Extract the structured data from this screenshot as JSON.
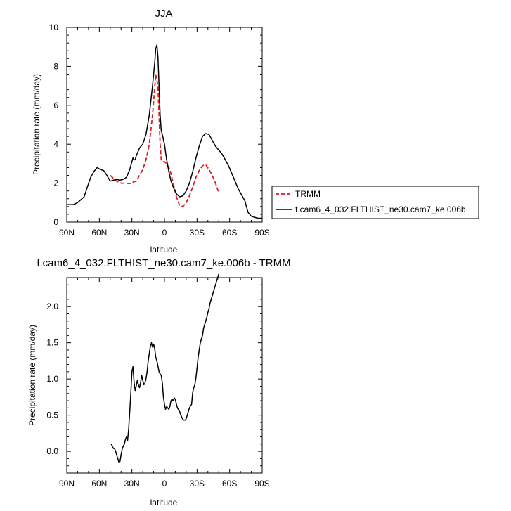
{
  "chart_data": [
    {
      "type": "line",
      "title": "JJA",
      "xlabel": "latitude",
      "ylabel": "Precipitation rate (mm/day)",
      "xlim": [
        90,
        -90
      ],
      "ylim": [
        0,
        10
      ],
      "xticks": [
        90,
        60,
        30,
        0,
        -30,
        -60,
        -90
      ],
      "xtick_labels": [
        "90N",
        "60N",
        "30N",
        "0",
        "30S",
        "60S",
        "90S"
      ],
      "yticks": [
        0,
        2,
        4,
        6,
        8,
        10
      ],
      "ytick_labels": [
        "0",
        "2",
        "4",
        "6",
        "8",
        "10"
      ],
      "legend_position": "right",
      "series": [
        {
          "name": "TRMM",
          "color": "#e41a1c",
          "dash": "dashed",
          "x": [
            50,
            47,
            44,
            40,
            36,
            32,
            29,
            26,
            23,
            20,
            17,
            14,
            11,
            8,
            6,
            5,
            4,
            3,
            2,
            0,
            -2,
            -5,
            -8,
            -11,
            -14,
            -17,
            -20,
            -23,
            -26,
            -29,
            -32,
            -35,
            -38,
            -41,
            -44,
            -47,
            -50
          ],
          "y": [
            2.4,
            2.25,
            2.1,
            2.0,
            2.0,
            1.98,
            2.05,
            2.1,
            2.4,
            2.7,
            3.2,
            4.0,
            5.5,
            7.6,
            7.0,
            5.5,
            4.0,
            3.2,
            3.1,
            3.1,
            3.0,
            2.7,
            2.0,
            1.3,
            0.85,
            0.8,
            1.0,
            1.35,
            1.8,
            2.3,
            2.65,
            2.9,
            2.95,
            2.7,
            2.4,
            2.0,
            1.5
          ]
        },
        {
          "name": "f.cam6_4_032.FLTHIST_ne30.cam7_ke.006b",
          "color": "#000000",
          "dash": "solid",
          "x": [
            90,
            84,
            80,
            77,
            74,
            71,
            68,
            65,
            62,
            59,
            56,
            53,
            50,
            47,
            44,
            41,
            38,
            35,
            32,
            29,
            28,
            27,
            26,
            23,
            20,
            17,
            14,
            11,
            9,
            8,
            7,
            6,
            5,
            4,
            3,
            2,
            0,
            -2,
            -4,
            -6,
            -8,
            -11,
            -14,
            -17,
            -20,
            -23,
            -26,
            -29,
            -32,
            -35,
            -38,
            -41,
            -44,
            -47,
            -50,
            -53,
            -56,
            -59,
            -62,
            -65,
            -68,
            -71,
            -74,
            -77,
            -80,
            -83,
            -86,
            -90
          ],
          "y": [
            0.9,
            0.9,
            1.0,
            1.15,
            1.3,
            1.8,
            2.3,
            2.6,
            2.8,
            2.7,
            2.65,
            2.4,
            2.1,
            2.15,
            2.2,
            2.15,
            2.2,
            2.3,
            2.7,
            3.3,
            3.2,
            3.2,
            3.4,
            3.8,
            4.0,
            4.5,
            5.5,
            7.0,
            8.2,
            8.9,
            9.1,
            8.5,
            7.0,
            5.5,
            4.7,
            4.5,
            4.0,
            3.2,
            2.6,
            2.1,
            1.8,
            1.45,
            1.3,
            1.35,
            1.6,
            2.0,
            2.6,
            3.3,
            3.9,
            4.4,
            4.55,
            4.5,
            4.2,
            3.9,
            3.7,
            3.5,
            3.2,
            2.9,
            2.5,
            2.1,
            1.7,
            1.4,
            1.1,
            0.5,
            0.3,
            0.25,
            0.2,
            0.2
          ]
        }
      ]
    },
    {
      "type": "line",
      "title": "f.cam6_4_032.FLTHIST_ne30.cam7_ke.006b - TRMM",
      "xlabel": "latitude",
      "ylabel": "Precipitation rate (mm/day)",
      "xlim": [
        90,
        -90
      ],
      "ylim": [
        -0.3,
        2.4
      ],
      "xticks": [
        90,
        60,
        30,
        0,
        -30,
        -60,
        -90
      ],
      "xtick_labels": [
        "90N",
        "60N",
        "30N",
        "0",
        "30S",
        "60S",
        "90S"
      ],
      "yticks": [
        0,
        0.5,
        1,
        1.5,
        2
      ],
      "ytick_labels": [
        "0.0",
        "0.5",
        "1.0",
        "1.5",
        "2.0"
      ],
      "series": [
        {
          "color": "#000000",
          "dash": "solid",
          "x": [
            49,
            48,
            47,
            46,
            45,
            44,
            43,
            42,
            41,
            40,
            39,
            38,
            37,
            36,
            35,
            34,
            33,
            32,
            31,
            30,
            29,
            28,
            27,
            26,
            25,
            24,
            23,
            22,
            21,
            20,
            19,
            18,
            17,
            16,
            15,
            14,
            13,
            12,
            11,
            10,
            9,
            8,
            7,
            6,
            5,
            4,
            3,
            2,
            1,
            0,
            -1,
            -2,
            -3,
            -4,
            -5,
            -6,
            -7,
            -8,
            -9,
            -10,
            -11,
            -12,
            -13,
            -14,
            -15,
            -16,
            -17,
            -18,
            -19,
            -20,
            -21,
            -22,
            -23,
            -24,
            -25,
            -26,
            -27,
            -28,
            -29,
            -30,
            -31,
            -32,
            -33,
            -34,
            -35,
            -36,
            -37,
            -38,
            -39,
            -40,
            -41,
            -42,
            -43,
            -44,
            -45,
            -46,
            -47,
            -48,
            -49,
            -50
          ],
          "y": [
            0.1,
            0.07,
            0.04,
            0.04,
            0.0,
            -0.05,
            -0.1,
            -0.15,
            -0.14,
            -0.05,
            0.03,
            0.07,
            0.1,
            0.16,
            0.2,
            0.15,
            0.3,
            0.55,
            0.8,
            1.1,
            1.17,
            0.95,
            0.84,
            0.9,
            0.98,
            0.92,
            0.88,
            0.95,
            1.05,
            0.98,
            0.92,
            0.94,
            1.0,
            1.1,
            1.25,
            1.35,
            1.45,
            1.5,
            1.44,
            1.48,
            1.42,
            1.3,
            1.25,
            1.18,
            1.1,
            1.07,
            1.05,
            0.95,
            0.75,
            0.65,
            0.58,
            0.62,
            0.6,
            0.58,
            0.62,
            0.7,
            0.72,
            0.7,
            0.74,
            0.72,
            0.65,
            0.6,
            0.57,
            0.55,
            0.5,
            0.47,
            0.44,
            0.43,
            0.43,
            0.45,
            0.5,
            0.55,
            0.6,
            0.63,
            0.65,
            0.82,
            0.88,
            0.92,
            1.02,
            1.15,
            1.3,
            1.4,
            1.5,
            1.55,
            1.6,
            1.7,
            1.75,
            1.8,
            1.85,
            1.92,
            1.97,
            2.05,
            2.1,
            2.15,
            2.2,
            2.25,
            2.3,
            2.35,
            2.4,
            2.45
          ]
        }
      ]
    }
  ]
}
